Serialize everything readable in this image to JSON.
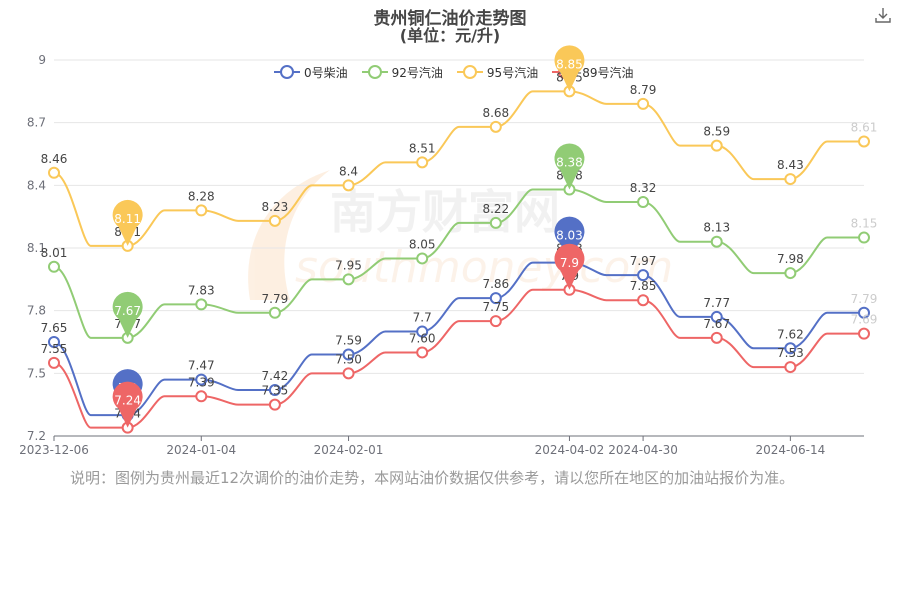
{
  "header": {
    "title": "贵州铜仁油价走势图",
    "subtitle": "(单位：元/升)"
  },
  "note": "说明：图例为贵州最近12次调价的油价走势，本网站油价数据仅供参考，请以您所在地区的加油站报价为准。",
  "watermark": {
    "cn": "南方财富网",
    "en": "southmoney.com"
  },
  "icons": {
    "download": "download-icon"
  },
  "chart_data": {
    "type": "line",
    "title": "贵州铜仁油价走势图",
    "subtitle": "(单位：元/升)",
    "x_tick_labels": [
      "2023-12-06",
      "2024-01-04",
      "2024-02-01",
      "2024-04-02",
      "2024-04-30",
      "2024-06-14"
    ],
    "x_tick_index": [
      0,
      2,
      4,
      7,
      8,
      10
    ],
    "y_ticks": [
      7.2,
      7.5,
      7.8,
      8.1,
      8.4,
      8.7,
      9
    ],
    "y_tick_labels": [
      "7.2",
      "7.5",
      "7.8",
      "8.1",
      "8.4",
      "8.7",
      "9"
    ],
    "ylim": [
      7.2,
      9
    ],
    "grid": true,
    "legend_position": "top-center",
    "series": [
      {
        "name": "0号柴油",
        "color": "#5470c6",
        "values": [
          7.65,
          7.3,
          7.47,
          7.42,
          7.59,
          7.7,
          7.86,
          8.03,
          7.97,
          7.77,
          7.62,
          7.79
        ],
        "labels": [
          "7.65",
          "7.3",
          "7.47",
          "7.42",
          "7.59",
          "7.7",
          "7.86",
          "8.03",
          "7.97",
          "7.77",
          "7.62",
          "7.79"
        ],
        "marker_index": 1
      },
      {
        "name": "92号汽油",
        "color": "#91cc75",
        "values": [
          8.01,
          7.67,
          7.83,
          7.79,
          7.95,
          8.05,
          8.22,
          8.38,
          8.32,
          8.13,
          7.98,
          8.15
        ],
        "labels": [
          "8.01",
          "7.67",
          "7.83",
          "7.79",
          "7.95",
          "8.05",
          "8.22",
          "8.38",
          "8.32",
          "8.13",
          "7.98",
          "8.15"
        ],
        "marker_index": 1
      },
      {
        "name": "95号汽油",
        "color": "#fac858",
        "values": [
          8.46,
          8.11,
          8.28,
          8.23,
          8.4,
          8.51,
          8.68,
          8.85,
          8.79,
          8.59,
          8.43,
          8.61
        ],
        "labels": [
          "8.46",
          "8.11",
          "8.28",
          "8.23",
          "8.4",
          "8.51",
          "8.68",
          "8.85",
          "8.79",
          "8.59",
          "8.43",
          "8.61"
        ],
        "marker_index": 1
      },
      {
        "name": "89号汽油",
        "color": "#ee6666",
        "values": [
          7.55,
          7.24,
          7.39,
          7.35,
          7.5,
          7.6,
          7.75,
          7.9,
          7.85,
          7.67,
          7.53,
          7.69
        ],
        "labels": [
          "7.55",
          "7.24",
          "7.39",
          "7.35",
          "7.50",
          "7.60",
          "7.75",
          "7.9",
          "7.85",
          "7.67",
          "7.53",
          "7.69"
        ],
        "marker_index": 1
      }
    ],
    "max_pins": [
      {
        "series": 0,
        "index": 7
      },
      {
        "series": 1,
        "index": 7
      },
      {
        "series": 2,
        "index": 7
      },
      {
        "series": 3,
        "index": 7
      }
    ]
  }
}
